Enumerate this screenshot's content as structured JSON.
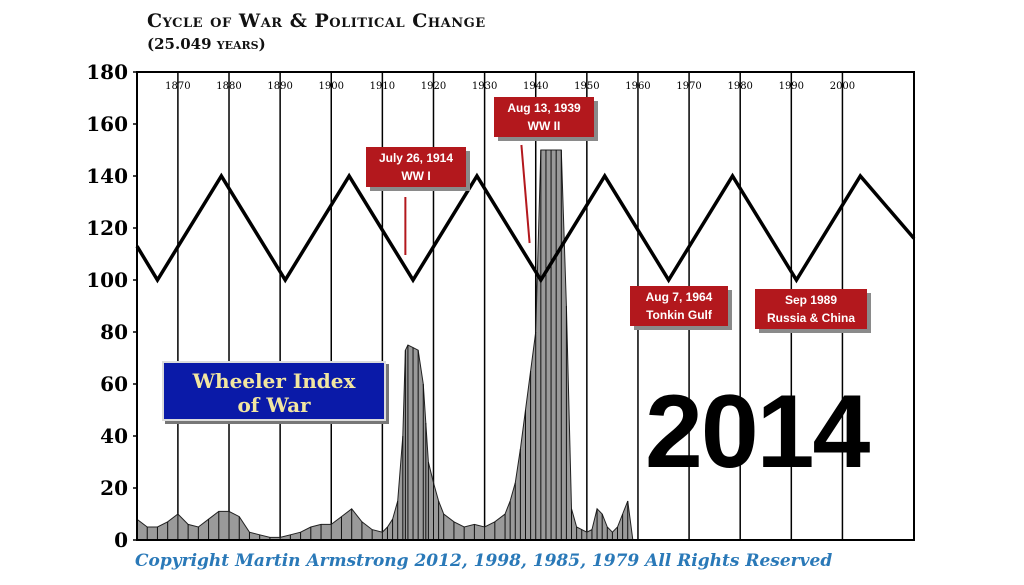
{
  "chart_data": {
    "type": "line",
    "title": "Cycle of War & Political Change",
    "subtitle": "(25.049 years)",
    "xlim": [
      1862,
      2014
    ],
    "ylim": [
      0,
      180
    ],
    "y_ticks": [
      "0",
      "20",
      "40",
      "60",
      "80",
      "100",
      "120",
      "140",
      "160",
      "180"
    ],
    "x_ticks": [
      "1870",
      "1880",
      "1890",
      "1900",
      "1910",
      "1920",
      "1930",
      "1940",
      "1950",
      "1960",
      "1970",
      "1980",
      "1990",
      "2000"
    ],
    "grid": "vertical",
    "cycle_line": {
      "x": [
        1862,
        1866,
        1878.5,
        1891,
        1903.5,
        1916,
        1928.5,
        1941,
        1953.5,
        1966,
        1978.5,
        1991,
        2003.5,
        2014
      ],
      "y": [
        113,
        100,
        140,
        100,
        140,
        100,
        140,
        100,
        140,
        100,
        140,
        100,
        140,
        116
      ]
    },
    "wheeler_index": {
      "x": [
        1862,
        1864,
        1866,
        1868,
        1870,
        1872,
        1874,
        1876,
        1878,
        1880,
        1882,
        1884,
        1886,
        1888,
        1890,
        1892,
        1894,
        1896,
        1898,
        1900,
        1902,
        1904,
        1906,
        1908,
        1910,
        1911,
        1912,
        1913,
        1914,
        1914.5,
        1915,
        1916,
        1917,
        1918,
        1918.5,
        1919,
        1920,
        1921,
        1922,
        1924,
        1926,
        1928,
        1930,
        1932,
        1934,
        1935,
        1936,
        1937,
        1938,
        1939,
        1940,
        1941,
        1942,
        1943,
        1944,
        1945,
        1946,
        1947,
        1948,
        1949,
        1950,
        1951,
        1952,
        1953,
        1954,
        1955,
        1956,
        1957,
        1958,
        1959
      ],
      "y": [
        8,
        5,
        5,
        7,
        10,
        6,
        5,
        8,
        11,
        11,
        9,
        3,
        2,
        1,
        1,
        2,
        3,
        5,
        6,
        6,
        9,
        12,
        7,
        4,
        3,
        5,
        8,
        15,
        40,
        73,
        75,
        74,
        73,
        60,
        45,
        30,
        22,
        15,
        10,
        7,
        5,
        6,
        5,
        7,
        10,
        15,
        22,
        35,
        50,
        65,
        80,
        150,
        150,
        150,
        150,
        150,
        90,
        12,
        5,
        4,
        3,
        4,
        12,
        10,
        5,
        3,
        5,
        10,
        15,
        0
      ]
    },
    "callouts": [
      {
        "line1": "July 26, 1914",
        "line2": "WW I"
      },
      {
        "line1": "Aug 13, 1939",
        "line2": "WW II"
      },
      {
        "line1": "Aug 7, 1964",
        "line2": "Tonkin Gulf"
      },
      {
        "line1": "Sep 1989",
        "line2": "Russia & China"
      }
    ],
    "legend_box": {
      "line1": "Wheeler Index",
      "line2": "of War"
    },
    "big_year": "2014"
  },
  "copyright": "Copyright Martin Armstrong 2012, 1998, 1985, 1979 All Rights Reserved",
  "colors": {
    "callout": "#b3181d",
    "legend_box": "#0a1aa8",
    "legend_text": "#f2e6a0",
    "copyright": "#2a79b8"
  }
}
